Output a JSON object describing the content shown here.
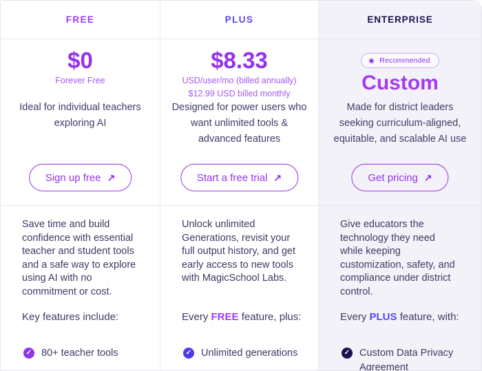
{
  "ui": {
    "arrow_icon": "↗",
    "check_icon": "✓"
  },
  "colors": {
    "free_accent": "#9e3bf2",
    "plus_accent": "#5a45f6",
    "enterprise_accent": "#1d1152",
    "price_purple": "#9530ec",
    "button_purple": "#9333ea",
    "enterprise_bg": "#f4f2f9",
    "body_text": "#3f3864"
  },
  "plans": [
    {
      "header": "FREE",
      "price": "$0",
      "price_note_1": "Forever Free",
      "tagline": "Ideal for individual teachers\nexploring AI",
      "cta_label": "Sign up free",
      "description": "Save time and build\nconfidence with essential\nteacher and student tools\nand a safe way to explore\nusing AI with no\ncommitment or cost.",
      "features_heading": {
        "prefix": "Key features include:",
        "em": "",
        "suffix": ""
      },
      "features": [
        "80+ teacher tools"
      ]
    },
    {
      "header": "PLUS",
      "price": "$8.33",
      "price_note_1": "USD/user/mo (billed annually)",
      "price_note_2": "$12.99 USD billed monthly",
      "tagline": "Designed for power users who\nwant unlimited tools &\nadvanced features",
      "cta_label": "Start a free trial",
      "description": "Unlock unlimited\nGenerations, revisit your\nfull output history, and get\nearly access to new tools\nwith MagicSchool Labs.",
      "features_heading": {
        "prefix": "Every ",
        "em": "FREE",
        "suffix": " feature, plus:"
      },
      "features": [
        "Unlimited generations"
      ]
    },
    {
      "header": "ENTERPRISE",
      "badge": "Recommended",
      "price": "Custom",
      "tagline": "Made for district leaders\nseeking curriculum-aligned,\nequitable, and scalable AI use",
      "cta_label": "Get pricing",
      "description": "Give educators the\ntechnology they need\nwhile keeping\ncustomization, safety, and\ncompliance under district\ncontrol.",
      "features_heading": {
        "prefix": "Every ",
        "em": "PLUS",
        "suffix": " feature, with:"
      },
      "features": [
        "Custom Data Privacy\nAgreement"
      ]
    }
  ]
}
